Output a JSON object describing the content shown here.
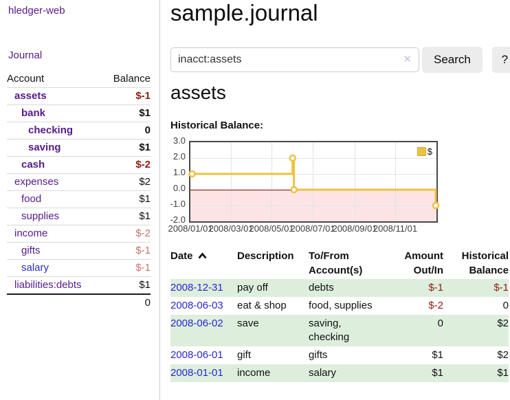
{
  "app": {
    "title": "hledger-web"
  },
  "sidebar": {
    "journal_link": "Journal",
    "accounts_table": {
      "account_header": "Account",
      "balance_header": "Balance",
      "rows": [
        {
          "name": "assets",
          "balance": "$-1",
          "depth": 1,
          "bold": true,
          "balance_style": "neg",
          "link_style": "purple"
        },
        {
          "name": "bank",
          "balance": "$1",
          "depth": 2,
          "bold": true,
          "balance_style": "pos",
          "link_style": "purple"
        },
        {
          "name": "checking",
          "balance": "0",
          "depth": 3,
          "bold": true,
          "balance_style": "pos",
          "link_style": "purple"
        },
        {
          "name": "saving",
          "balance": "$1",
          "depth": 3,
          "bold": true,
          "balance_style": "pos",
          "link_style": "purple"
        },
        {
          "name": "cash",
          "balance": "$-2",
          "depth": 2,
          "bold": true,
          "balance_style": "neg",
          "link_style": "purple"
        },
        {
          "name": "expenses",
          "balance": "$2",
          "depth": 1,
          "bold": false,
          "balance_style": "pos",
          "link_style": "purple"
        },
        {
          "name": "food",
          "balance": "$1",
          "depth": 2,
          "bold": false,
          "balance_style": "pos",
          "link_style": "purple"
        },
        {
          "name": "supplies",
          "balance": "$1",
          "depth": 2,
          "bold": false,
          "balance_style": "pos",
          "link_style": "purple"
        },
        {
          "name": "income",
          "balance": "$-2",
          "depth": 1,
          "bold": false,
          "balance_style": "neg-dim",
          "link_style": "purple"
        },
        {
          "name": "gifts",
          "balance": "$-1",
          "depth": 2,
          "bold": false,
          "balance_style": "neg-dim",
          "link_style": "purple"
        },
        {
          "name": "salary",
          "balance": "$-1",
          "depth": 2,
          "bold": false,
          "balance_style": "neg-dim",
          "link_style": "blue"
        },
        {
          "name": "liabilities:debts",
          "balance": "$1",
          "depth": 1,
          "bold": false,
          "balance_style": "pos",
          "link_style": "purple"
        }
      ],
      "total": "0"
    }
  },
  "header": {
    "title": "sample.journal"
  },
  "search": {
    "value": "inacct:assets",
    "placeholder": "",
    "clear_icon": "x",
    "search_button": "Search",
    "help_button": "?"
  },
  "register": {
    "heading": "assets",
    "chart_label": "Historical Balance:"
  },
  "chart_data": {
    "type": "line",
    "title": "Historical Balance",
    "step": true,
    "series": [
      {
        "name": "$",
        "color": "#edc240",
        "points": [
          {
            "x": "2008-01-01",
            "y": 1.0
          },
          {
            "x": "2008-06-01",
            "y": 2.0
          },
          {
            "x": "2008-06-03",
            "y": 0.0
          },
          {
            "x": "2008-12-31",
            "y": -1.0
          }
        ]
      }
    ],
    "ylim": [
      -2.0,
      3.0
    ],
    "xlim": [
      "2008-01-01",
      "2009-01-01"
    ],
    "yticks": [
      3.0,
      2.0,
      1.0,
      0.0,
      -1.0,
      -2.0
    ],
    "xticks": [
      "2008/01/01",
      "2008/03/01",
      "2008/05/01",
      "2008/07/01",
      "2008/09/01",
      "2008/11/01"
    ],
    "grid": true,
    "legend_position": "top-right",
    "legend_label": "$",
    "negative_region": true
  },
  "colors": {
    "link_purple": "#551a8b",
    "link_blue": "#2a2acc",
    "negative_red": "#8e1b10",
    "negative_dim": "#c4736e",
    "row_stripe_green": "#ddeedd",
    "chart_line_yellow": "#edc240",
    "chart_negative_fill": "#fcdcdc",
    "chart_zero_line": "#8b0000",
    "button_gray": "#ececec"
  },
  "tx_table": {
    "columns": [
      "Date",
      "Description",
      "To/From Account(s)",
      "Amount Out/In",
      "Historical Balance"
    ],
    "sort_column": "Date",
    "sort_direction": "ascending",
    "rows": [
      {
        "date": "2008-12-31",
        "description": "pay off",
        "accounts": "debts",
        "amount": "$-1",
        "amount_neg": true,
        "balance": "$-1",
        "balance_neg": true,
        "shaded": true
      },
      {
        "date": "2008-06-03",
        "description": "eat & shop",
        "accounts": "food, supplies",
        "amount": "$-2",
        "amount_neg": true,
        "balance": "0",
        "balance_neg": false,
        "shaded": false
      },
      {
        "date": "2008-06-02",
        "description": "save",
        "accounts": "saving, checking",
        "amount": "0",
        "amount_neg": false,
        "balance": "$2",
        "balance_neg": false,
        "shaded": true
      },
      {
        "date": "2008-06-01",
        "description": "gift",
        "accounts": "gifts",
        "amount": "$1",
        "amount_neg": false,
        "balance": "$2",
        "balance_neg": false,
        "shaded": false
      },
      {
        "date": "2008-01-01",
        "description": "income",
        "accounts": "salary",
        "amount": "$1",
        "amount_neg": false,
        "balance": "$1",
        "balance_neg": false,
        "shaded": true
      }
    ]
  }
}
